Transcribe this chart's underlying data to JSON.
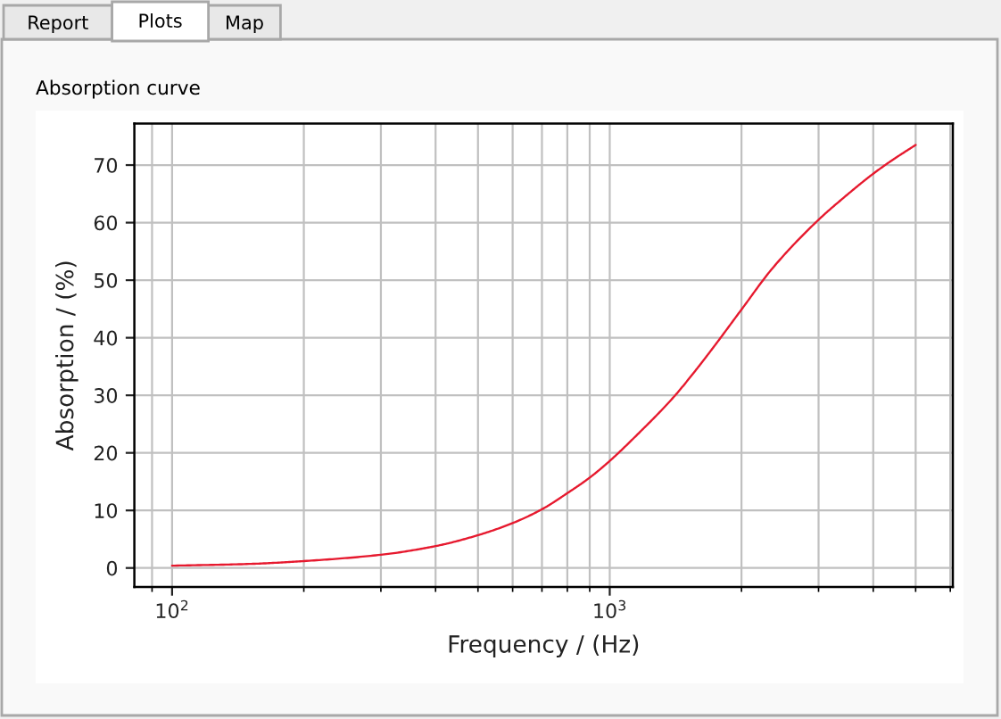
{
  "chart_data": {
    "type": "line",
    "title": "Absorption curve",
    "xlabel": "Frequency / (Hz)",
    "ylabel": "Absorption / (%)",
    "annotations": [
      "Report",
      "Plots",
      "Map"
    ],
    "x": [
      100,
      150,
      200,
      300,
      400,
      500,
      600,
      700,
      800,
      900,
      1000,
      1150,
      1400,
      1570,
      1720,
      2000,
      2350,
      3000,
      3420,
      4000,
      4390,
      5000
    ],
    "series": [
      {
        "color": "#e6192e",
        "values": [
          0.4,
          0.7,
          1.2,
          2.3,
          3.8,
          5.7,
          7.8,
          10.2,
          13.0,
          15.7,
          18.6,
          23.0,
          29.7,
          34.3,
          38.2,
          44.9,
          52.0,
          60.5,
          64.3,
          68.5,
          70.7,
          73.5
        ]
      }
    ],
    "log": "x",
    "xlim": [
      82,
      6080
    ],
    "ylim": [
      -3.3,
      77.2
    ],
    "xticks": [
      {
        "value": 90,
        "label": null
      },
      {
        "value": 100,
        "label": "10$^{2}$"
      },
      {
        "value": 200,
        "label": null
      },
      {
        "value": 300,
        "label": null
      },
      {
        "value": 400,
        "label": null
      },
      {
        "value": 500,
        "label": null
      },
      {
        "value": 600,
        "label": null
      },
      {
        "value": 700,
        "label": null
      },
      {
        "value": 800,
        "label": null
      },
      {
        "value": 900,
        "label": null
      },
      {
        "value": 1000,
        "label": "10$^{3}$"
      },
      {
        "value": 2000,
        "label": null
      },
      {
        "value": 3000,
        "label": null
      },
      {
        "value": 4000,
        "label": null
      },
      {
        "value": 5000,
        "label": null
      },
      {
        "value": 6000,
        "label": null
      }
    ],
    "yticks": [
      0,
      10,
      20,
      30,
      40,
      50,
      60,
      70
    ],
    "grid": true
  }
}
